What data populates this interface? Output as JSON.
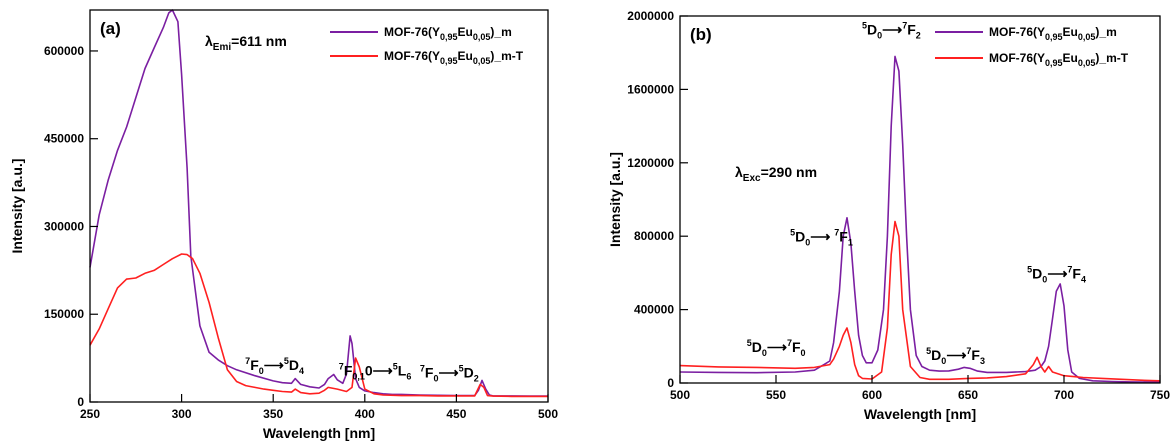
{
  "chart_data": [
    {
      "type": "line",
      "panel_label": "(a)",
      "xlabel": "Wavelength [nm]",
      "ylabel": "Intensity [a.u.]",
      "xlim": [
        250,
        500
      ],
      "ylim": [
        0,
        670000
      ],
      "xticks": [
        250,
        300,
        350,
        400,
        450,
        500
      ],
      "yticks": [
        0,
        150000,
        300000,
        450000,
        600000
      ],
      "legend_position": "top-right",
      "annotation_header": {
        "greek": "λ",
        "sub": "Emi",
        "rest": "=611 nm"
      },
      "annotations": [
        {
          "label_parts": [
            [
              "sup",
              "7"
            ],
            [
              "t",
              "F"
            ],
            [
              "sub",
              "0"
            ],
            [
              "t",
              "⟶"
            ],
            [
              "sup",
              "5"
            ],
            [
              "t",
              "D"
            ],
            [
              "sub",
              "4"
            ]
          ],
          "x": 362,
          "y": 55000
        },
        {
          "label_parts": [
            [
              "sup",
              "7"
            ],
            [
              "t",
              "F"
            ],
            [
              "sub",
              "0,1"
            ],
            [
              "t",
              "0⟶"
            ],
            [
              "sup",
              "5"
            ],
            [
              "t",
              "L"
            ],
            [
              "sub",
              "6"
            ]
          ],
          "x": 400,
          "y": 45000
        },
        {
          "label_parts": [
            [
              "sup",
              "7"
            ],
            [
              "t",
              "F"
            ],
            [
              "sub",
              "0"
            ],
            [
              "t",
              "⟶"
            ],
            [
              "sup",
              "5"
            ],
            [
              "t",
              "D"
            ],
            [
              "sub",
              "2"
            ]
          ],
          "x": 453,
          "y": 42000
        }
      ],
      "series": [
        {
          "name": "MOF-76(Y0,95Eu0,05)_m",
          "legend_parts": [
            [
              "t",
              "MOF-76(Y"
            ],
            [
              "sub",
              "0,95"
            ],
            [
              "t",
              "Eu"
            ],
            [
              "sub",
              "0,05"
            ],
            [
              "t",
              ")_m"
            ]
          ],
          "color": "#7B1FA2",
          "x": [
            250,
            255,
            260,
            265,
            270,
            275,
            280,
            285,
            290,
            293,
            295,
            298,
            300,
            303,
            305,
            310,
            315,
            320,
            325,
            330,
            340,
            350,
            355,
            360,
            362,
            365,
            370,
            375,
            378,
            380,
            383,
            385,
            388,
            390,
            392,
            393,
            395,
            397,
            400,
            405,
            410,
            415,
            420,
            430,
            440,
            450,
            460,
            462,
            464,
            466,
            468,
            470,
            480,
            490,
            500
          ],
          "y": [
            230000,
            320000,
            380000,
            430000,
            470000,
            520000,
            570000,
            605000,
            640000,
            665000,
            670000,
            650000,
            560000,
            400000,
            250000,
            130000,
            85000,
            72000,
            62000,
            55000,
            45000,
            36000,
            33000,
            32000,
            40000,
            30000,
            26000,
            24000,
            30000,
            40000,
            47000,
            38000,
            32000,
            48000,
            113000,
            100000,
            40000,
            25000,
            19000,
            16000,
            14000,
            13000,
            13000,
            12000,
            11500,
            11000,
            11000,
            20000,
            37000,
            22000,
            12000,
            10500,
            10500,
            10000,
            10000
          ]
        },
        {
          "name": "MOF-76(Y0,95Eu0,05)_m-T",
          "legend_parts": [
            [
              "t",
              "MOF-76(Y"
            ],
            [
              "sub",
              "0,95"
            ],
            [
              "t",
              "Eu"
            ],
            [
              "sub",
              "0,05"
            ],
            [
              "t",
              ")_m-T"
            ]
          ],
          "color": "#FF2020",
          "x": [
            250,
            255,
            260,
            265,
            270,
            275,
            280,
            285,
            290,
            295,
            300,
            303,
            306,
            310,
            315,
            320,
            325,
            330,
            335,
            340,
            345,
            350,
            355,
            360,
            362,
            365,
            370,
            375,
            378,
            380,
            385,
            390,
            393,
            395,
            397,
            400,
            405,
            410,
            420,
            430,
            440,
            450,
            460,
            463,
            465,
            467,
            470,
            480,
            490,
            500
          ],
          "y": [
            97000,
            125000,
            160000,
            195000,
            210000,
            212000,
            220000,
            225000,
            235000,
            245000,
            253000,
            252000,
            245000,
            220000,
            170000,
            110000,
            55000,
            35000,
            28000,
            25000,
            22000,
            20000,
            18000,
            17000,
            22000,
            16000,
            14000,
            15000,
            20000,
            25000,
            22000,
            18000,
            25000,
            75000,
            60000,
            22000,
            14000,
            12000,
            11000,
            11000,
            10500,
            10500,
            10500,
            30000,
            25000,
            11000,
            10000,
            9500,
            9500,
            9500
          ]
        }
      ]
    },
    {
      "type": "line",
      "panel_label": "(b)",
      "xlabel": "Wavelength [nm]",
      "ylabel": "Intensity [a.u.]",
      "xlim": [
        500,
        750
      ],
      "ylim": [
        0,
        2000000
      ],
      "xticks": [
        500,
        550,
        600,
        650,
        700,
        750
      ],
      "yticks": [
        0,
        400000,
        800000,
        1200000,
        1600000,
        2000000
      ],
      "legend_position": "top-right",
      "annotation_header": {
        "greek": "λ",
        "sub": "Exc",
        "rest": "=290 nm"
      },
      "annotations": [
        {
          "label_parts": [
            [
              "sup",
              "5"
            ],
            [
              "t",
              "D"
            ],
            [
              "sub",
              "0"
            ],
            [
              "t",
              "⟶"
            ],
            [
              "sup",
              "7"
            ],
            [
              "t",
              "F"
            ],
            [
              "sub",
              "2"
            ]
          ],
          "x": 613,
          "y": 1900000
        },
        {
          "label_parts": [
            [
              "sup",
              "5"
            ],
            [
              "t",
              "D"
            ],
            [
              "sub",
              "0"
            ],
            [
              "t",
              "⟶ "
            ],
            [
              "sup",
              "7"
            ],
            [
              "t",
              "F"
            ],
            [
              "sub",
              "1"
            ]
          ],
          "x": 586,
          "y": 770000
        },
        {
          "label_parts": [
            [
              "sup",
              "5"
            ],
            [
              "t",
              "D"
            ],
            [
              "sub",
              "0"
            ],
            [
              "t",
              "⟶"
            ],
            [
              "sup",
              "7"
            ],
            [
              "t",
              "F"
            ],
            [
              "sub",
              "0"
            ]
          ],
          "x": 566,
          "y": 170000
        },
        {
          "label_parts": [
            [
              "sup",
              "5"
            ],
            [
              "t",
              "D"
            ],
            [
              "sub",
              "0"
            ],
            [
              "t",
              "⟶"
            ],
            [
              "sup",
              "7"
            ],
            [
              "t",
              "F"
            ],
            [
              "sub",
              "3"
            ]
          ],
          "x": 648,
          "y": 125000
        },
        {
          "label_parts": [
            [
              "sup",
              "5"
            ],
            [
              "t",
              "D"
            ],
            [
              "sub",
              "0"
            ],
            [
              "t",
              "⟶"
            ],
            [
              "sup",
              "7"
            ],
            [
              "t",
              "F"
            ],
            [
              "sub",
              "4"
            ]
          ],
          "x": 698,
          "y": 570000
        }
      ],
      "series": [
        {
          "name": "MOF-76(Y0,95Eu0,05)_m",
          "legend_parts": [
            [
              "t",
              "MOF-76(Y"
            ],
            [
              "sub",
              "0,95"
            ],
            [
              "t",
              "Eu"
            ],
            [
              "sub",
              "0,05"
            ],
            [
              "t",
              ")_m"
            ]
          ],
          "color": "#7B1FA2",
          "x": [
            500,
            520,
            540,
            560,
            570,
            575,
            578,
            580,
            583,
            585,
            587,
            589,
            591,
            593,
            595,
            597,
            600,
            603,
            606,
            608,
            610,
            612,
            614,
            616,
            618,
            620,
            623,
            626,
            630,
            635,
            640,
            645,
            648,
            651,
            655,
            660,
            670,
            680,
            685,
            688,
            690,
            692,
            694,
            696,
            698,
            700,
            702,
            704,
            708,
            715,
            725,
            735,
            750
          ],
          "y": [
            60000,
            58000,
            56000,
            60000,
            70000,
            100000,
            120000,
            220000,
            500000,
            800000,
            900000,
            760000,
            500000,
            260000,
            150000,
            110000,
            110000,
            180000,
            400000,
            800000,
            1400000,
            1780000,
            1700000,
            1300000,
            800000,
            400000,
            150000,
            90000,
            70000,
            65000,
            66000,
            75000,
            85000,
            80000,
            65000,
            58000,
            58000,
            62000,
            70000,
            90000,
            120000,
            200000,
            350000,
            500000,
            540000,
            420000,
            180000,
            60000,
            25000,
            12000,
            8000,
            6000,
            5000
          ]
        },
        {
          "name": "MOF-76(Y0,95Eu0,05)_m-T",
          "legend_parts": [
            [
              "t",
              "MOF-76(Y"
            ],
            [
              "sub",
              "0,95"
            ],
            [
              "t",
              "Eu"
            ],
            [
              "sub",
              "0,05"
            ],
            [
              "t",
              ")_m-T"
            ]
          ],
          "color": "#FF2020",
          "x": [
            500,
            520,
            540,
            560,
            570,
            578,
            580,
            583,
            585,
            587,
            589,
            591,
            593,
            595,
            600,
            605,
            608,
            610,
            612,
            614,
            616,
            620,
            625,
            630,
            640,
            650,
            660,
            670,
            680,
            684,
            686,
            688,
            690,
            692,
            694,
            700,
            705,
            710,
            720,
            730,
            740,
            750
          ],
          "y": [
            95000,
            88000,
            85000,
            80000,
            85000,
            100000,
            130000,
            200000,
            260000,
            300000,
            220000,
            100000,
            40000,
            25000,
            22000,
            60000,
            300000,
            700000,
            880000,
            800000,
            400000,
            90000,
            30000,
            20000,
            20000,
            25000,
            28000,
            35000,
            50000,
            100000,
            140000,
            90000,
            60000,
            90000,
            60000,
            40000,
            35000,
            30000,
            25000,
            20000,
            15000,
            12000
          ]
        }
      ]
    }
  ]
}
